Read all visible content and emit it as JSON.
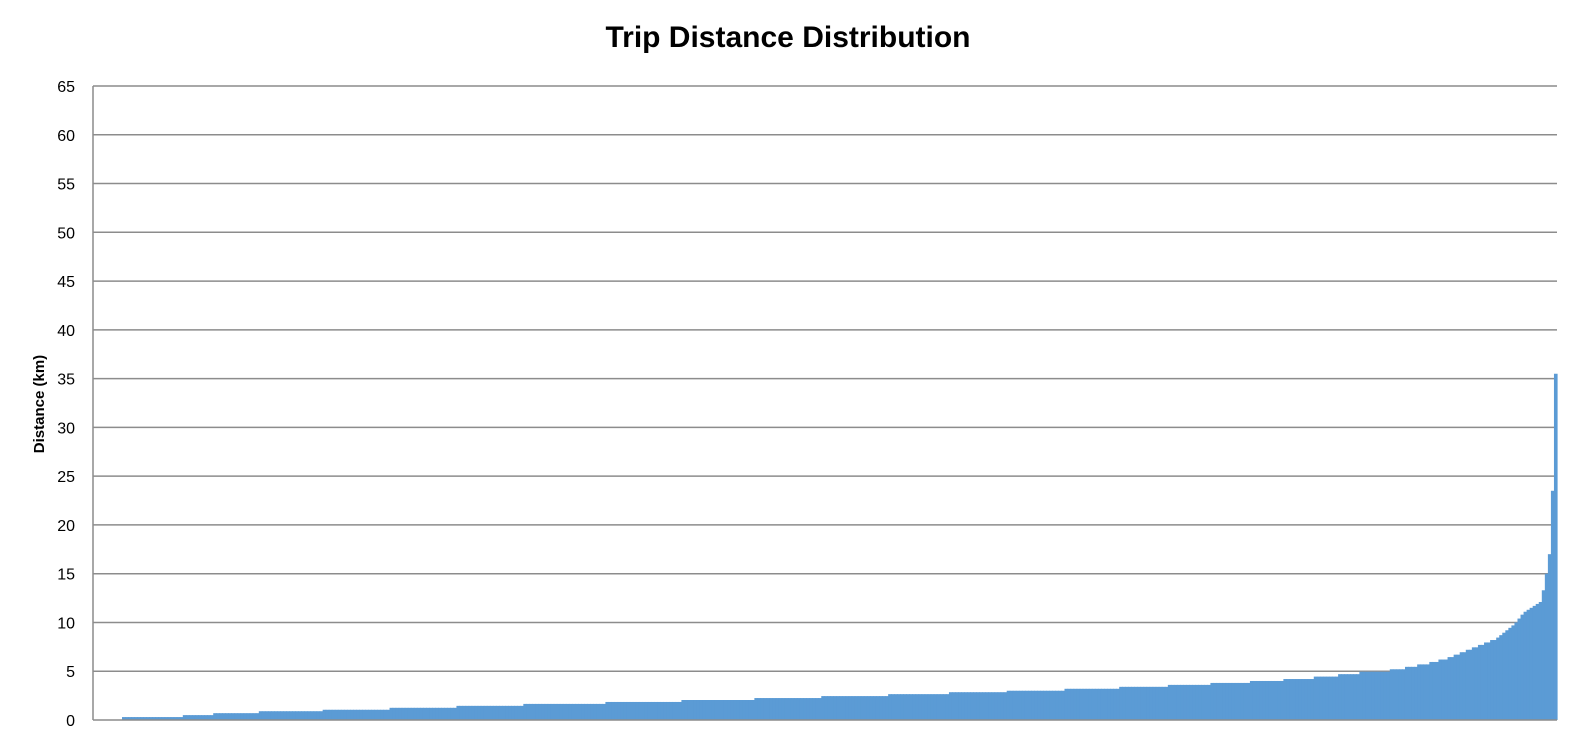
{
  "chart_data": {
    "type": "bar",
    "title": "Trip Distance Distribution",
    "xlabel": "",
    "ylabel": "Distance (km)",
    "ylim": [
      0,
      65
    ],
    "yticks": [
      "0",
      "5",
      "10",
      "15",
      "20",
      "25",
      "30",
      "35",
      "40",
      "45",
      "50",
      "55",
      "60",
      "65"
    ],
    "grid": true,
    "legend": "none",
    "bar_color": "#5b9bd5",
    "note_on_x": "trips sorted by ascending distance; no x tick labels shown",
    "values": [
      0.3,
      0.3,
      0.3,
      0.3,
      0.3,
      0.3,
      0.3,
      0.3,
      0.3,
      0.3,
      0.3,
      0.3,
      0.3,
      0.3,
      0.3,
      0.3,
      0.3,
      0.3,
      0.3,
      0.3,
      0.5,
      0.5,
      0.5,
      0.5,
      0.5,
      0.5,
      0.5,
      0.5,
      0.5,
      0.5,
      0.7,
      0.7,
      0.7,
      0.7,
      0.7,
      0.7,
      0.7,
      0.7,
      0.7,
      0.7,
      0.7,
      0.7,
      0.7,
      0.7,
      0.7,
      0.9,
      0.9,
      0.9,
      0.9,
      0.9,
      0.9,
      0.9,
      0.9,
      0.9,
      0.9,
      0.9,
      0.9,
      0.9,
      0.9,
      0.9,
      0.9,
      0.9,
      0.9,
      0.9,
      0.9,
      0.9,
      1.05,
      1.05,
      1.05,
      1.05,
      1.05,
      1.05,
      1.05,
      1.05,
      1.05,
      1.05,
      1.05,
      1.05,
      1.05,
      1.05,
      1.05,
      1.05,
      1.05,
      1.05,
      1.05,
      1.05,
      1.05,
      1.05,
      1.25,
      1.25,
      1.25,
      1.25,
      1.25,
      1.25,
      1.25,
      1.25,
      1.25,
      1.25,
      1.25,
      1.25,
      1.25,
      1.25,
      1.25,
      1.25,
      1.25,
      1.25,
      1.25,
      1.25,
      1.25,
      1.25,
      1.45,
      1.45,
      1.45,
      1.45,
      1.45,
      1.45,
      1.45,
      1.45,
      1.45,
      1.45,
      1.45,
      1.45,
      1.45,
      1.45,
      1.45,
      1.45,
      1.45,
      1.45,
      1.45,
      1.45,
      1.45,
      1.45,
      1.65,
      1.65,
      1.65,
      1.65,
      1.65,
      1.65,
      1.65,
      1.65,
      1.65,
      1.65,
      1.65,
      1.65,
      1.65,
      1.65,
      1.65,
      1.65,
      1.65,
      1.65,
      1.65,
      1.65,
      1.65,
      1.65,
      1.65,
      1.65,
      1.65,
      1.65,
      1.65,
      1.85,
      1.85,
      1.85,
      1.85,
      1.85,
      1.85,
      1.85,
      1.85,
      1.85,
      1.85,
      1.85,
      1.85,
      1.85,
      1.85,
      1.85,
      1.85,
      1.85,
      1.85,
      1.85,
      1.85,
      1.85,
      1.85,
      1.85,
      1.85,
      1.85,
      2.05,
      2.05,
      2.05,
      2.05,
      2.05,
      2.05,
      2.05,
      2.05,
      2.05,
      2.05,
      2.05,
      2.05,
      2.05,
      2.05,
      2.05,
      2.05,
      2.05,
      2.05,
      2.05,
      2.05,
      2.05,
      2.05,
      2.05,
      2.05,
      2.25,
      2.25,
      2.25,
      2.25,
      2.25,
      2.25,
      2.25,
      2.25,
      2.25,
      2.25,
      2.25,
      2.25,
      2.25,
      2.25,
      2.25,
      2.25,
      2.25,
      2.25,
      2.25,
      2.25,
      2.25,
      2.25,
      2.45,
      2.45,
      2.45,
      2.45,
      2.45,
      2.45,
      2.45,
      2.45,
      2.45,
      2.45,
      2.45,
      2.45,
      2.45,
      2.45,
      2.45,
      2.45,
      2.45,
      2.45,
      2.45,
      2.45,
      2.45,
      2.45,
      2.65,
      2.65,
      2.65,
      2.65,
      2.65,
      2.65,
      2.65,
      2.65,
      2.65,
      2.65,
      2.65,
      2.65,
      2.65,
      2.65,
      2.65,
      2.65,
      2.65,
      2.65,
      2.65,
      2.65,
      2.85,
      2.85,
      2.85,
      2.85,
      2.85,
      2.85,
      2.85,
      2.85,
      2.85,
      2.85,
      2.85,
      2.85,
      2.85,
      2.85,
      2.85,
      2.85,
      2.85,
      2.85,
      2.85,
      3.0,
      3.0,
      3.0,
      3.0,
      3.0,
      3.0,
      3.0,
      3.0,
      3.0,
      3.0,
      3.0,
      3.0,
      3.0,
      3.0,
      3.0,
      3.0,
      3.0,
      3.0,
      3.0,
      3.2,
      3.2,
      3.2,
      3.2,
      3.2,
      3.2,
      3.2,
      3.2,
      3.2,
      3.2,
      3.2,
      3.2,
      3.2,
      3.2,
      3.2,
      3.2,
      3.2,
      3.2,
      3.4,
      3.4,
      3.4,
      3.4,
      3.4,
      3.4,
      3.4,
      3.4,
      3.4,
      3.4,
      3.4,
      3.4,
      3.4,
      3.4,
      3.4,
      3.4,
      3.6,
      3.6,
      3.6,
      3.6,
      3.6,
      3.6,
      3.6,
      3.6,
      3.6,
      3.6,
      3.6,
      3.6,
      3.6,
      3.6,
      3.8,
      3.8,
      3.8,
      3.8,
      3.8,
      3.8,
      3.8,
      3.8,
      3.8,
      3.8,
      3.8,
      3.8,
      3.8,
      4.0,
      4.0,
      4.0,
      4.0,
      4.0,
      4.0,
      4.0,
      4.0,
      4.0,
      4.0,
      4.0,
      4.2,
      4.2,
      4.2,
      4.2,
      4.2,
      4.2,
      4.2,
      4.2,
      4.2,
      4.2,
      4.45,
      4.45,
      4.45,
      4.45,
      4.45,
      4.45,
      4.45,
      4.45,
      4.7,
      4.7,
      4.7,
      4.7,
      4.7,
      4.7,
      4.7,
      4.95,
      4.95,
      4.95,
      4.95,
      4.95,
      4.95,
      4.95,
      4.95,
      4.95,
      4.95,
      5.2,
      5.2,
      5.2,
      5.2,
      5.2,
      5.45,
      5.45,
      5.45,
      5.45,
      5.7,
      5.7,
      5.7,
      5.7,
      5.95,
      5.95,
      5.95,
      6.2,
      6.2,
      6.2,
      6.45,
      6.45,
      6.7,
      6.7,
      6.95,
      6.95,
      7.2,
      7.2,
      7.45,
      7.45,
      7.7,
      7.7,
      7.95,
      7.95,
      8.2,
      8.2,
      8.45,
      8.7,
      8.95,
      9.2,
      9.45,
      9.7,
      10.0,
      10.4,
      10.8,
      11.1,
      11.3,
      11.5,
      11.7,
      11.9,
      12.1,
      13.3,
      15.0,
      17.0,
      23.5,
      35.5
    ]
  }
}
